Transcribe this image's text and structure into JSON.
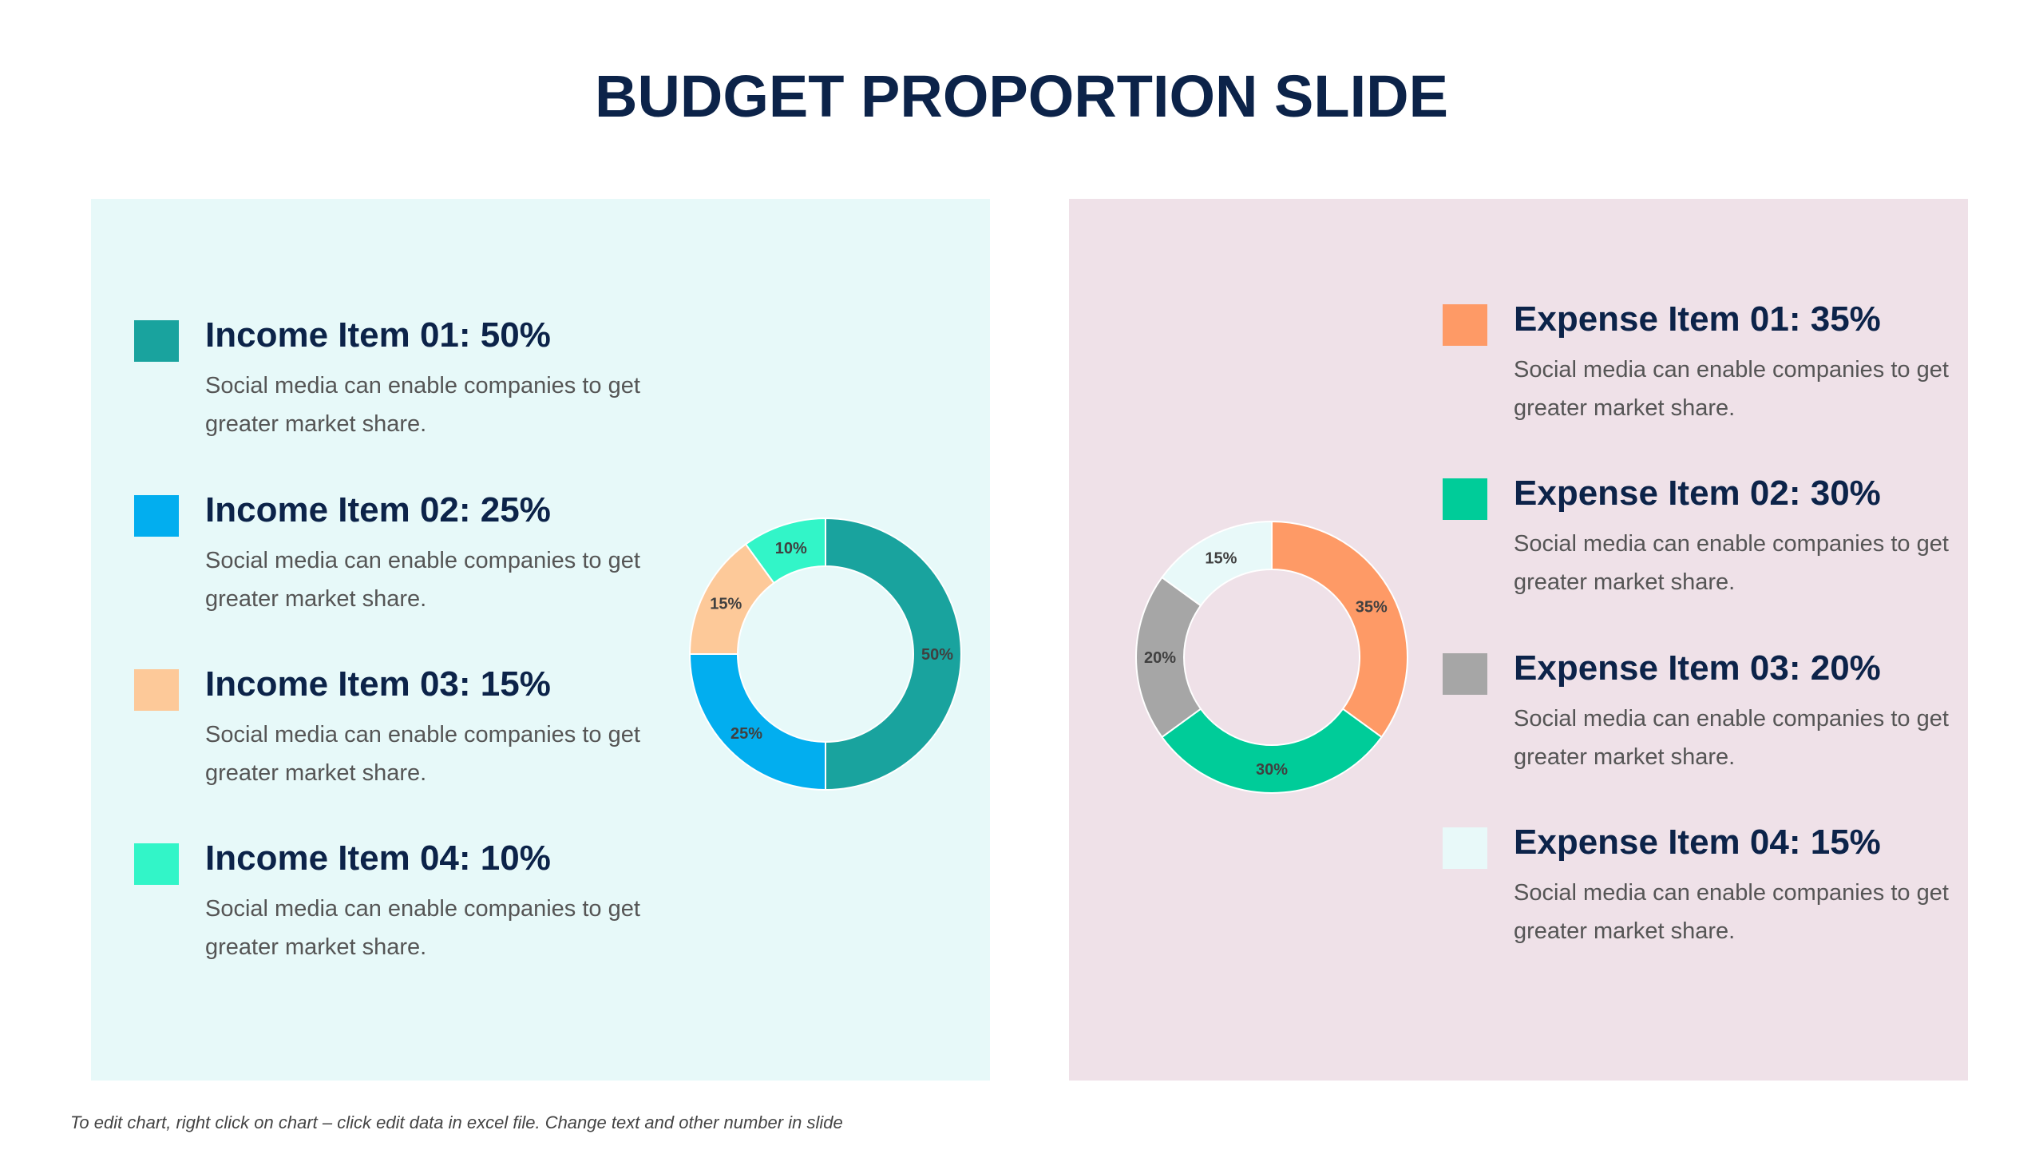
{
  "title": "BUDGET PROPORTION SLIDE",
  "footnote": "To edit chart, right click on chart – click edit data in excel file. Change text and other number in slide",
  "income": {
    "items": [
      {
        "heading": "Income Item 01: 50%",
        "desc": "Social media can enable companies to get greater market share.",
        "color": "#19a39e"
      },
      {
        "heading": "Income Item 02: 25%",
        "desc": "Social media can enable companies to get greater market share.",
        "color": "#02aeef"
      },
      {
        "heading": "Income Item 03: 15%",
        "desc": "Social media can enable companies to get greater market share.",
        "color": "#fdc999"
      },
      {
        "heading": "Income Item 04: 10%",
        "desc": "Social media can enable companies to get greater market share.",
        "color": "#32f5c8"
      }
    ]
  },
  "expense": {
    "items": [
      {
        "heading": "Expense Item 01: 35%",
        "desc": "Social media can enable companies to get greater market share.",
        "color": "#fe9a66"
      },
      {
        "heading": "Expense Item 02: 30%",
        "desc": "Social media can enable companies to get greater market share.",
        "color": "#00cc99"
      },
      {
        "heading": "Expense Item 03: 20%",
        "desc": "Social media can enable companies to get greater market share.",
        "color": "#a6a6a6"
      },
      {
        "heading": "Expense Item 04: 15%",
        "desc": "Social media can enable companies to get greater market share.",
        "color": "#e8f9f9"
      }
    ]
  },
  "chart_data": [
    {
      "type": "pie",
      "variant": "donut",
      "categories": [
        "Income Item 01",
        "Income Item 02",
        "Income Item 03",
        "Income Item 04"
      ],
      "values": [
        50,
        25,
        15,
        10
      ],
      "data_labels": [
        "50%",
        "25%",
        "15%",
        "10%"
      ],
      "colors": [
        "#19a39e",
        "#02aeef",
        "#fdc999",
        "#32f5c8"
      ]
    },
    {
      "type": "pie",
      "variant": "donut",
      "categories": [
        "Expense Item 01",
        "Expense Item 02",
        "Expense Item 03",
        "Expense Item 04"
      ],
      "values": [
        35,
        30,
        20,
        15
      ],
      "data_labels": [
        "35%",
        "30%",
        "20%",
        "15%"
      ],
      "colors": [
        "#fe9a66",
        "#00cc99",
        "#a6a6a6",
        "#e8f9f9"
      ]
    }
  ]
}
